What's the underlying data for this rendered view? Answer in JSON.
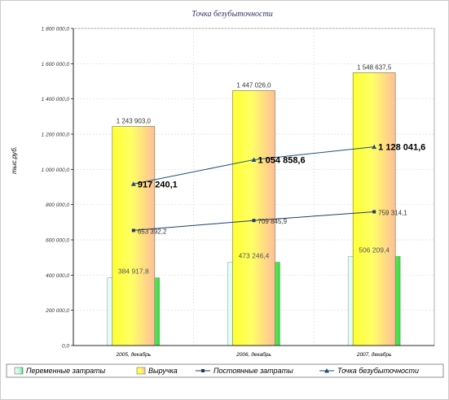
{
  "chart_data": {
    "type": "bar",
    "title": "Точка безубыточности",
    "ylabel": "тыс.руб.",
    "xlabel": "",
    "categories": [
      "2005, декабрь",
      "2006, декабрь",
      "2007, декабрь"
    ],
    "ylim": [
      0,
      1800000
    ],
    "yticks": [
      0,
      200000,
      400000,
      600000,
      800000,
      1000000,
      1200000,
      1400000,
      1600000,
      1800000
    ],
    "ytick_labels": [
      "0,0",
      "200 000,0",
      "400 000,0",
      "600 000,0",
      "800 000,0",
      "1 000 000,0",
      "1 200 000,0",
      "1 400 000,0",
      "1 600 000,0",
      "1 800 000,0"
    ],
    "grid": true,
    "legend_position": "bottom",
    "series": [
      {
        "name": "Переменные затраты",
        "type": "bar",
        "values": [
          384917.8,
          473246.4,
          506209.4
        ],
        "labels": [
          "384 917,8",
          "473 246,4",
          "506 209,4"
        ],
        "color": "#c8f5e4"
      },
      {
        "name": "Выручка",
        "type": "bar",
        "values": [
          1243903.0,
          1447026.0,
          1548637.5
        ],
        "labels": [
          "1 243 903,0",
          "1 447 026,0",
          "1 548 637,5"
        ],
        "color": "#ffff66"
      },
      {
        "name": "Постоянные затраты",
        "type": "line",
        "marker": "square",
        "values": [
          653392.2,
          709845.9,
          759314.1
        ],
        "labels": [
          "653 392,2",
          "709 845,9",
          "759 314,1"
        ],
        "color": "#1f3a6e"
      },
      {
        "name": "Точка безубыточности",
        "type": "line",
        "marker": "triangle",
        "values": [
          917240.1,
          1054858.6,
          1128041.6
        ],
        "labels": [
          "917 240,1",
          "1 054 858,6",
          "1 128 041,6"
        ],
        "color": "#1f4f7a"
      }
    ]
  }
}
